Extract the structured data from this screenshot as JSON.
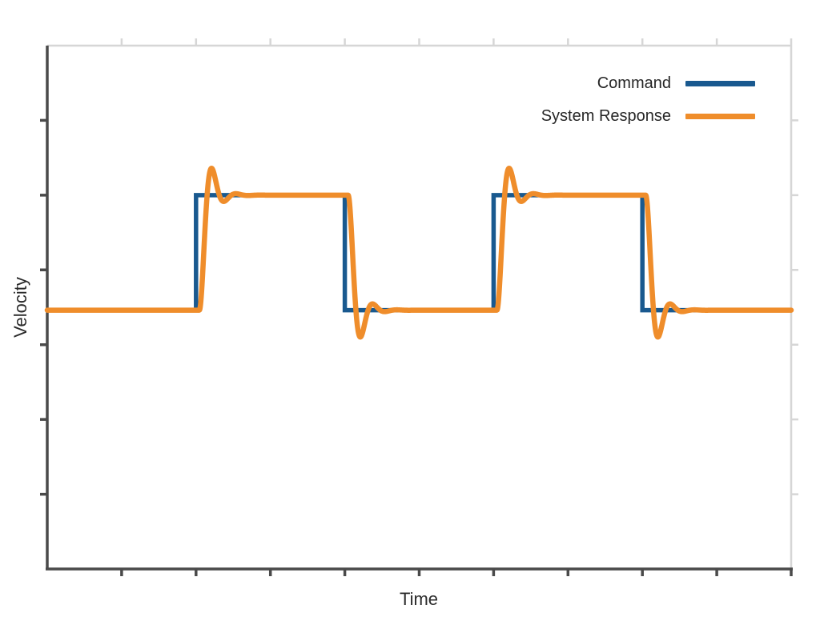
{
  "chart_data": {
    "type": "line",
    "title": "",
    "xlabel": "Time",
    "ylabel": "Velocity",
    "x_range": [
      0,
      10
    ],
    "y_range": [
      -2.25,
      2.3
    ],
    "x_tick_divisions": 10,
    "y_tick_divisions": 7,
    "tick_labels_shown": false,
    "grid": false,
    "legend_position": "top-right-inside",
    "background_color": "#ffffff",
    "axis_color_left_bottom": "#4a4a4a",
    "axis_color_top_right": "#d6d6d6",
    "text_color": "#2b2b2b",
    "series": [
      {
        "name": "Command",
        "color": "#19598f",
        "line_width": 5.5,
        "shape": "square-wave",
        "low": 0,
        "high": 1,
        "points": [
          [
            0,
            0
          ],
          [
            2,
            0
          ],
          [
            2,
            1
          ],
          [
            4,
            1
          ],
          [
            4,
            0
          ],
          [
            6,
            0
          ],
          [
            6,
            1
          ],
          [
            8,
            1
          ],
          [
            8,
            0
          ],
          [
            10,
            0
          ]
        ]
      },
      {
        "name": "System Response",
        "color": "#ef8d2b",
        "line_width": 6.5,
        "shape": "underdamped-step-response",
        "low": 0,
        "high": 1,
        "edges": [
          {
            "t": 2,
            "to": 1
          },
          {
            "t": 4,
            "to": 0
          },
          {
            "t": 6,
            "to": 1
          },
          {
            "t": 8,
            "to": 0
          }
        ],
        "dynamics": {
          "delay": 0.045,
          "zeta": 0.42,
          "natural_frequency": 21.2,
          "overshoot_fraction": 0.23
        }
      }
    ]
  }
}
